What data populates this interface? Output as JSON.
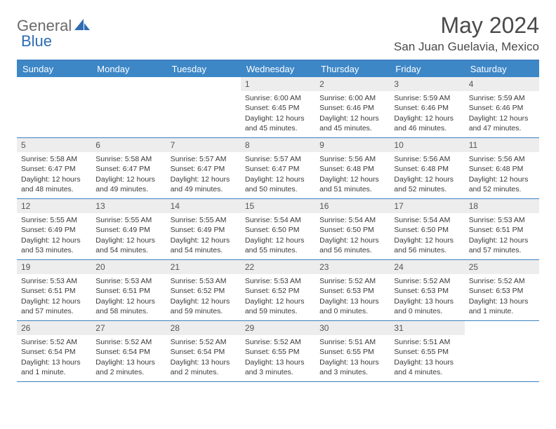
{
  "logo": {
    "part1": "General",
    "part2": "Blue"
  },
  "title": "May 2024",
  "location": "San Juan Guelavia, Mexico",
  "colors": {
    "header_bg": "#3d87c7",
    "header_border": "#3d7fbf",
    "daynum_bg": "#ededed",
    "text": "#3a3a3a",
    "title_text": "#4a4a4a",
    "logo_gray": "#6a6a6a",
    "logo_blue": "#2f6db3"
  },
  "daysOfWeek": [
    "Sunday",
    "Monday",
    "Tuesday",
    "Wednesday",
    "Thursday",
    "Friday",
    "Saturday"
  ],
  "weeks": [
    [
      {
        "n": "",
        "sr": "",
        "ss": "",
        "dl": ""
      },
      {
        "n": "",
        "sr": "",
        "ss": "",
        "dl": ""
      },
      {
        "n": "",
        "sr": "",
        "ss": "",
        "dl": ""
      },
      {
        "n": "1",
        "sr": "Sunrise: 6:00 AM",
        "ss": "Sunset: 6:45 PM",
        "dl": "Daylight: 12 hours and 45 minutes."
      },
      {
        "n": "2",
        "sr": "Sunrise: 6:00 AM",
        "ss": "Sunset: 6:46 PM",
        "dl": "Daylight: 12 hours and 45 minutes."
      },
      {
        "n": "3",
        "sr": "Sunrise: 5:59 AM",
        "ss": "Sunset: 6:46 PM",
        "dl": "Daylight: 12 hours and 46 minutes."
      },
      {
        "n": "4",
        "sr": "Sunrise: 5:59 AM",
        "ss": "Sunset: 6:46 PM",
        "dl": "Daylight: 12 hours and 47 minutes."
      }
    ],
    [
      {
        "n": "5",
        "sr": "Sunrise: 5:58 AM",
        "ss": "Sunset: 6:47 PM",
        "dl": "Daylight: 12 hours and 48 minutes."
      },
      {
        "n": "6",
        "sr": "Sunrise: 5:58 AM",
        "ss": "Sunset: 6:47 PM",
        "dl": "Daylight: 12 hours and 49 minutes."
      },
      {
        "n": "7",
        "sr": "Sunrise: 5:57 AM",
        "ss": "Sunset: 6:47 PM",
        "dl": "Daylight: 12 hours and 49 minutes."
      },
      {
        "n": "8",
        "sr": "Sunrise: 5:57 AM",
        "ss": "Sunset: 6:47 PM",
        "dl": "Daylight: 12 hours and 50 minutes."
      },
      {
        "n": "9",
        "sr": "Sunrise: 5:56 AM",
        "ss": "Sunset: 6:48 PM",
        "dl": "Daylight: 12 hours and 51 minutes."
      },
      {
        "n": "10",
        "sr": "Sunrise: 5:56 AM",
        "ss": "Sunset: 6:48 PM",
        "dl": "Daylight: 12 hours and 52 minutes."
      },
      {
        "n": "11",
        "sr": "Sunrise: 5:56 AM",
        "ss": "Sunset: 6:48 PM",
        "dl": "Daylight: 12 hours and 52 minutes."
      }
    ],
    [
      {
        "n": "12",
        "sr": "Sunrise: 5:55 AM",
        "ss": "Sunset: 6:49 PM",
        "dl": "Daylight: 12 hours and 53 minutes."
      },
      {
        "n": "13",
        "sr": "Sunrise: 5:55 AM",
        "ss": "Sunset: 6:49 PM",
        "dl": "Daylight: 12 hours and 54 minutes."
      },
      {
        "n": "14",
        "sr": "Sunrise: 5:55 AM",
        "ss": "Sunset: 6:49 PM",
        "dl": "Daylight: 12 hours and 54 minutes."
      },
      {
        "n": "15",
        "sr": "Sunrise: 5:54 AM",
        "ss": "Sunset: 6:50 PM",
        "dl": "Daylight: 12 hours and 55 minutes."
      },
      {
        "n": "16",
        "sr": "Sunrise: 5:54 AM",
        "ss": "Sunset: 6:50 PM",
        "dl": "Daylight: 12 hours and 56 minutes."
      },
      {
        "n": "17",
        "sr": "Sunrise: 5:54 AM",
        "ss": "Sunset: 6:50 PM",
        "dl": "Daylight: 12 hours and 56 minutes."
      },
      {
        "n": "18",
        "sr": "Sunrise: 5:53 AM",
        "ss": "Sunset: 6:51 PM",
        "dl": "Daylight: 12 hours and 57 minutes."
      }
    ],
    [
      {
        "n": "19",
        "sr": "Sunrise: 5:53 AM",
        "ss": "Sunset: 6:51 PM",
        "dl": "Daylight: 12 hours and 57 minutes."
      },
      {
        "n": "20",
        "sr": "Sunrise: 5:53 AM",
        "ss": "Sunset: 6:51 PM",
        "dl": "Daylight: 12 hours and 58 minutes."
      },
      {
        "n": "21",
        "sr": "Sunrise: 5:53 AM",
        "ss": "Sunset: 6:52 PM",
        "dl": "Daylight: 12 hours and 59 minutes."
      },
      {
        "n": "22",
        "sr": "Sunrise: 5:53 AM",
        "ss": "Sunset: 6:52 PM",
        "dl": "Daylight: 12 hours and 59 minutes."
      },
      {
        "n": "23",
        "sr": "Sunrise: 5:52 AM",
        "ss": "Sunset: 6:53 PM",
        "dl": "Daylight: 13 hours and 0 minutes."
      },
      {
        "n": "24",
        "sr": "Sunrise: 5:52 AM",
        "ss": "Sunset: 6:53 PM",
        "dl": "Daylight: 13 hours and 0 minutes."
      },
      {
        "n": "25",
        "sr": "Sunrise: 5:52 AM",
        "ss": "Sunset: 6:53 PM",
        "dl": "Daylight: 13 hours and 1 minute."
      }
    ],
    [
      {
        "n": "26",
        "sr": "Sunrise: 5:52 AM",
        "ss": "Sunset: 6:54 PM",
        "dl": "Daylight: 13 hours and 1 minute."
      },
      {
        "n": "27",
        "sr": "Sunrise: 5:52 AM",
        "ss": "Sunset: 6:54 PM",
        "dl": "Daylight: 13 hours and 2 minutes."
      },
      {
        "n": "28",
        "sr": "Sunrise: 5:52 AM",
        "ss": "Sunset: 6:54 PM",
        "dl": "Daylight: 13 hours and 2 minutes."
      },
      {
        "n": "29",
        "sr": "Sunrise: 5:52 AM",
        "ss": "Sunset: 6:55 PM",
        "dl": "Daylight: 13 hours and 3 minutes."
      },
      {
        "n": "30",
        "sr": "Sunrise: 5:51 AM",
        "ss": "Sunset: 6:55 PM",
        "dl": "Daylight: 13 hours and 3 minutes."
      },
      {
        "n": "31",
        "sr": "Sunrise: 5:51 AM",
        "ss": "Sunset: 6:55 PM",
        "dl": "Daylight: 13 hours and 4 minutes."
      },
      {
        "n": "",
        "sr": "",
        "ss": "",
        "dl": ""
      }
    ]
  ]
}
